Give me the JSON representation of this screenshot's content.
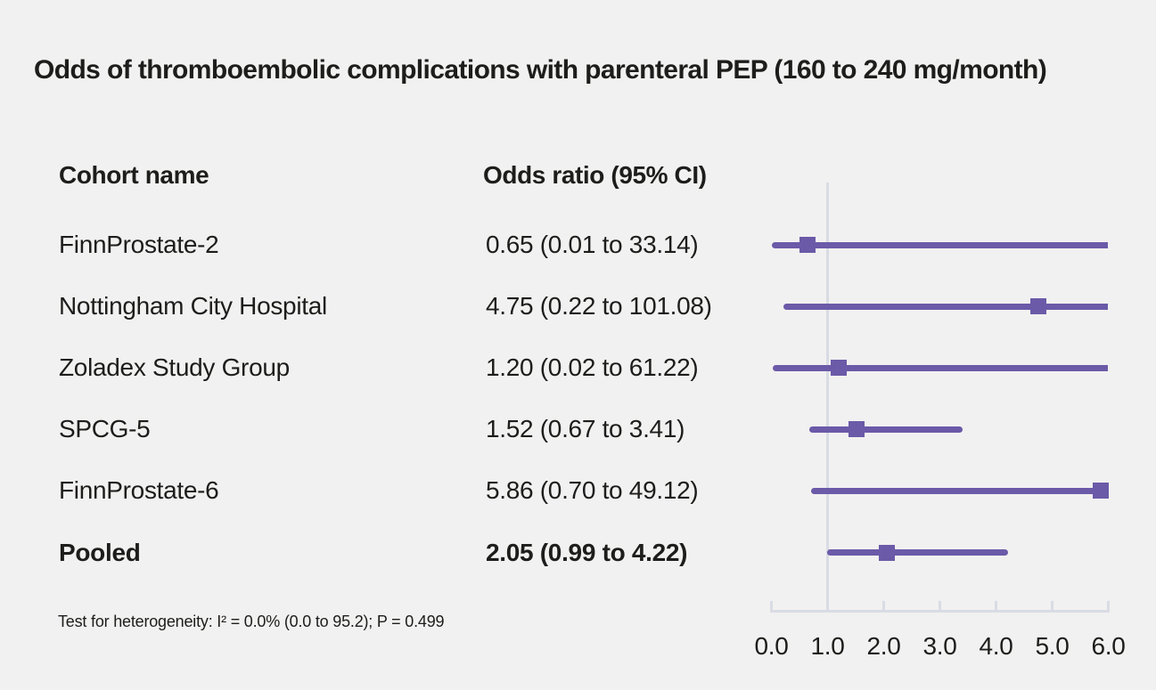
{
  "title": "Odds of thromboembolic complications with parenteral PEP (160 to 240 mg/month)",
  "table": {
    "cohort_header": "Cohort name",
    "or_header": "Odds ratio (95% CI)"
  },
  "footnote": "Test for heterogeneity: I² = 0.0% (0.0 to 95.2); P = 0.499",
  "colors": {
    "accent_purple": "#6b5aa8",
    "axis_gray": "#d8dce3",
    "background": "#f2f1f1",
    "text": "#1d1d1b"
  },
  "chart_data": {
    "type": "forest",
    "title": "Odds of thromboembolic complications with parenteral PEP (160 to 240 mg/month)",
    "xlabel": "",
    "ylabel": "",
    "xlim": [
      0.0,
      6.0
    ],
    "x_ticks": [
      "0.0",
      "1.0",
      "2.0",
      "3.0",
      "4.0",
      "5.0",
      "6.0"
    ],
    "x_tick_values": [
      0,
      1,
      2,
      3,
      4,
      5,
      6
    ],
    "reference_line_x": 1.0,
    "grid": false,
    "legend": "none",
    "rows": [
      {
        "label": "FinnProstate-2",
        "or_text": "0.65 (0.01 to 33.14)",
        "or": 0.65,
        "ci_low": 0.01,
        "ci_high": 33.14,
        "bold": false
      },
      {
        "label": "Nottingham City Hospital",
        "or_text": "4.75 (0.22 to 101.08)",
        "or": 4.75,
        "ci_low": 0.22,
        "ci_high": 101.08,
        "bold": false
      },
      {
        "label": "Zoladex Study Group",
        "or_text": "1.20 (0.02 to 61.22)",
        "or": 1.2,
        "ci_low": 0.02,
        "ci_high": 61.22,
        "bold": false
      },
      {
        "label": "SPCG-5",
        "or_text": "1.52 (0.67 to 3.41)",
        "or": 1.52,
        "ci_low": 0.67,
        "ci_high": 3.41,
        "bold": false
      },
      {
        "label": "FinnProstate-6",
        "or_text": "5.86 (0.70 to 49.12)",
        "or": 5.86,
        "ci_low": 0.7,
        "ci_high": 49.12,
        "bold": false
      },
      {
        "label": "Pooled",
        "or_text": "2.05 (0.99 to 4.22)",
        "or": 2.05,
        "ci_low": 0.99,
        "ci_high": 4.22,
        "bold": true
      }
    ]
  }
}
